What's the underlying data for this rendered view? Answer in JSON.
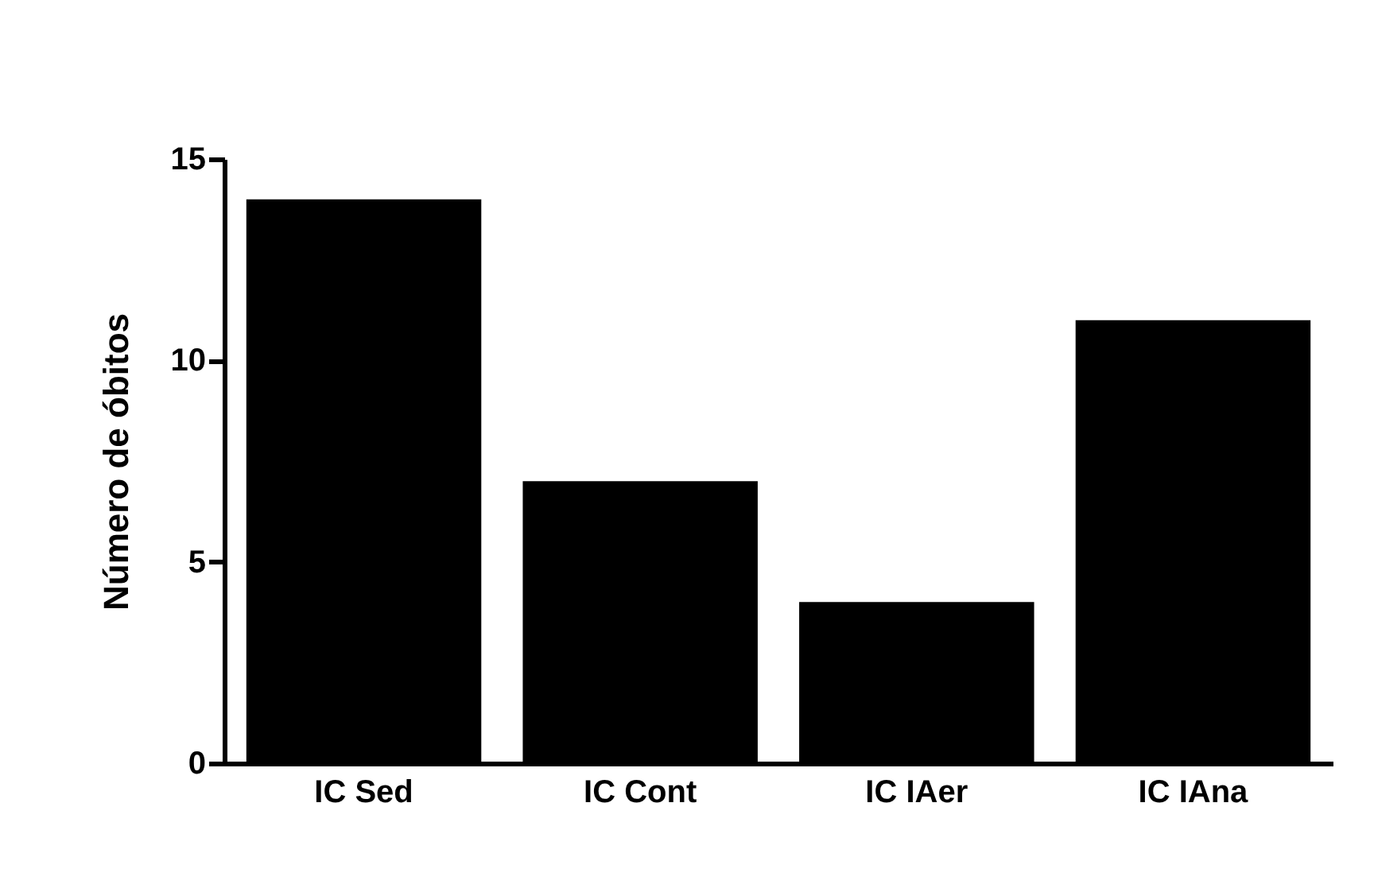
{
  "chart_data": {
    "type": "bar",
    "ylabel": "Número de óbitos",
    "categories": [
      "IC Sed",
      "IC Cont",
      "IC IAer",
      "IC IAna"
    ],
    "values": [
      14,
      7,
      4,
      11
    ],
    "color": "#000000",
    "ylim": [
      0,
      15
    ],
    "yticks": [
      0,
      5,
      10,
      15
    ],
    "grid": false
  }
}
